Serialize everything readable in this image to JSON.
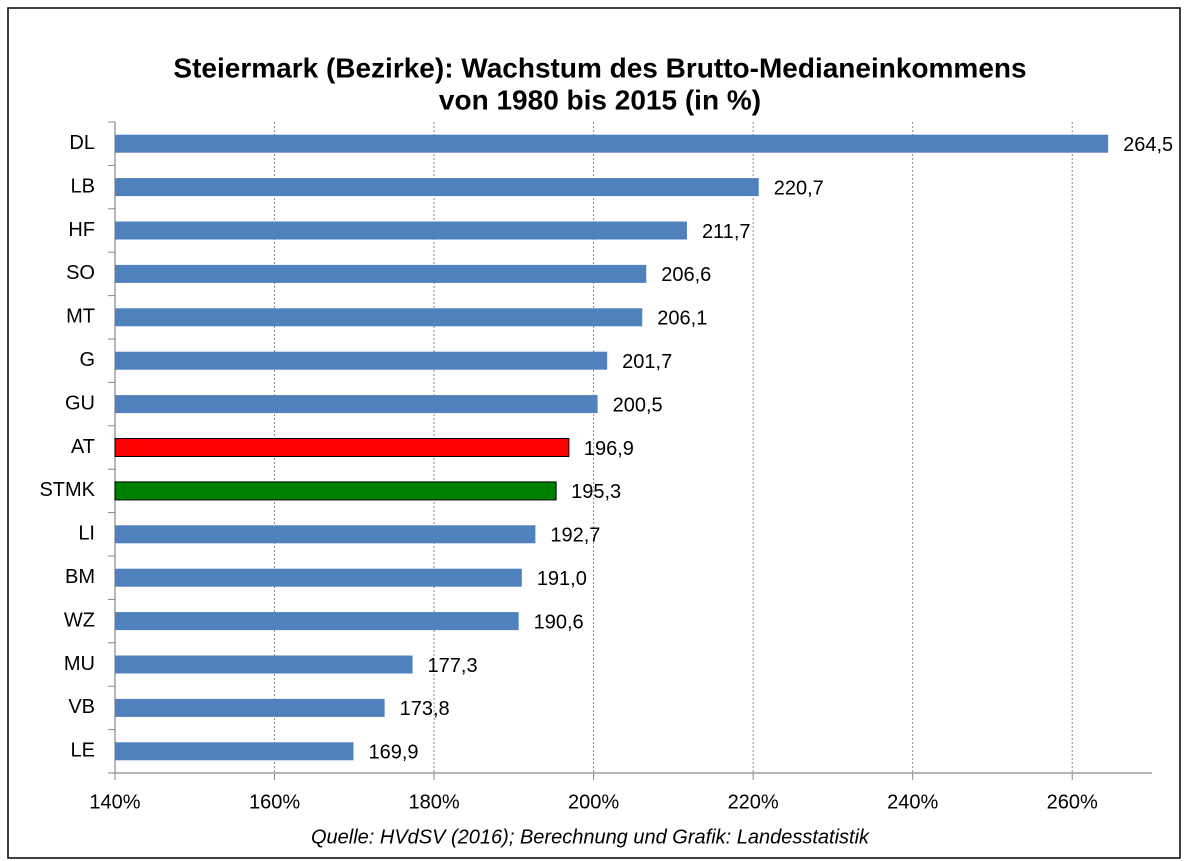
{
  "chart_data": {
    "type": "barh",
    "title": [
      "Steiermark (Bezirke): Wachstum des Brutto-Medianeinkommens",
      "von 1980 bis 2015 (in %)"
    ],
    "categories": [
      "DL",
      "LB",
      "HF",
      "SO",
      "MT",
      "G",
      "GU",
      "AT",
      "STMK",
      "LI",
      "BM",
      "WZ",
      "MU",
      "VB",
      "LE"
    ],
    "values": [
      264.5,
      220.7,
      211.7,
      206.6,
      206.1,
      201.7,
      200.5,
      196.9,
      195.3,
      192.7,
      191.0,
      190.6,
      177.3,
      173.8,
      169.9
    ],
    "value_labels": [
      "264,5",
      "220,7",
      "211,7",
      "206,6",
      "206,1",
      "201,7",
      "200,5",
      "196,9",
      "195,3",
      "192,7",
      "191,0",
      "190,6",
      "177,3",
      "173,8",
      "169,9"
    ],
    "colors": [
      "#4f81bd",
      "#4f81bd",
      "#4f81bd",
      "#4f81bd",
      "#4f81bd",
      "#4f81bd",
      "#4f81bd",
      "#ff0000",
      "#008000",
      "#4f81bd",
      "#4f81bd",
      "#4f81bd",
      "#4f81bd",
      "#4f81bd",
      "#4f81bd"
    ],
    "xlim": [
      140,
      270
    ],
    "xticks": [
      {
        "value": 140,
        "label": "140%"
      },
      {
        "value": 160,
        "label": "160%"
      },
      {
        "value": 180,
        "label": "180%"
      },
      {
        "value": 200,
        "label": "200%"
      },
      {
        "value": 220,
        "label": "220%"
      },
      {
        "value": 240,
        "label": "240%"
      },
      {
        "value": 260,
        "label": "260%"
      }
    ],
    "grid": true,
    "source": "Quelle: HVdSV (2016); Berechnung und Grafik: Landesstatistik"
  }
}
